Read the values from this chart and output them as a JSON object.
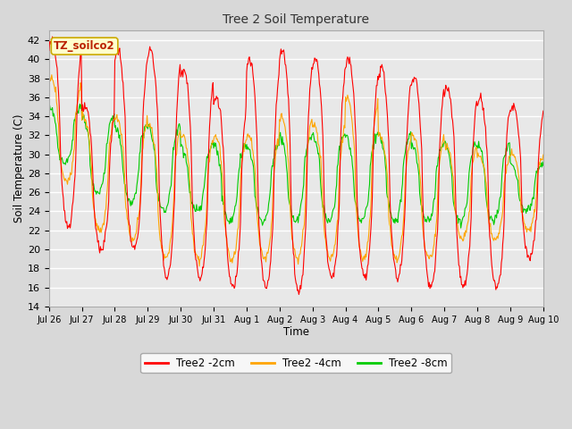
{
  "title": "Tree 2 Soil Temperature",
  "xlabel": "Time",
  "ylabel": "Soil Temperature (C)",
  "ylim": [
    14,
    43
  ],
  "yticks": [
    14,
    16,
    18,
    20,
    22,
    24,
    26,
    28,
    30,
    32,
    34,
    36,
    38,
    40,
    42
  ],
  "x_tick_labels": [
    "Jul 26",
    "Jul 27",
    "Jul 28",
    "Jul 29",
    "Jul 30",
    "Jul 31",
    "Aug 1",
    "Aug 2",
    "Aug 3",
    "Aug 4",
    "Aug 5",
    "Aug 6",
    "Aug 7",
    "Aug 8",
    "Aug 9",
    "Aug 10"
  ],
  "legend_labels": [
    "Tree2 -2cm",
    "Tree2 -4cm",
    "Tree2 -8cm"
  ],
  "legend_colors": [
    "#ff0000",
    "#ffa500",
    "#00cc00"
  ],
  "annotation_text": "TZ_soilco2",
  "annotation_bg": "#ffffcc",
  "annotation_border": "#ccaa00",
  "line_colors": [
    "#ff0000",
    "#ffa500",
    "#00cc00"
  ],
  "background_color": "#d8d8d8",
  "plot_bg_color": "#e8e8e8",
  "grid_color": "#ffffff"
}
